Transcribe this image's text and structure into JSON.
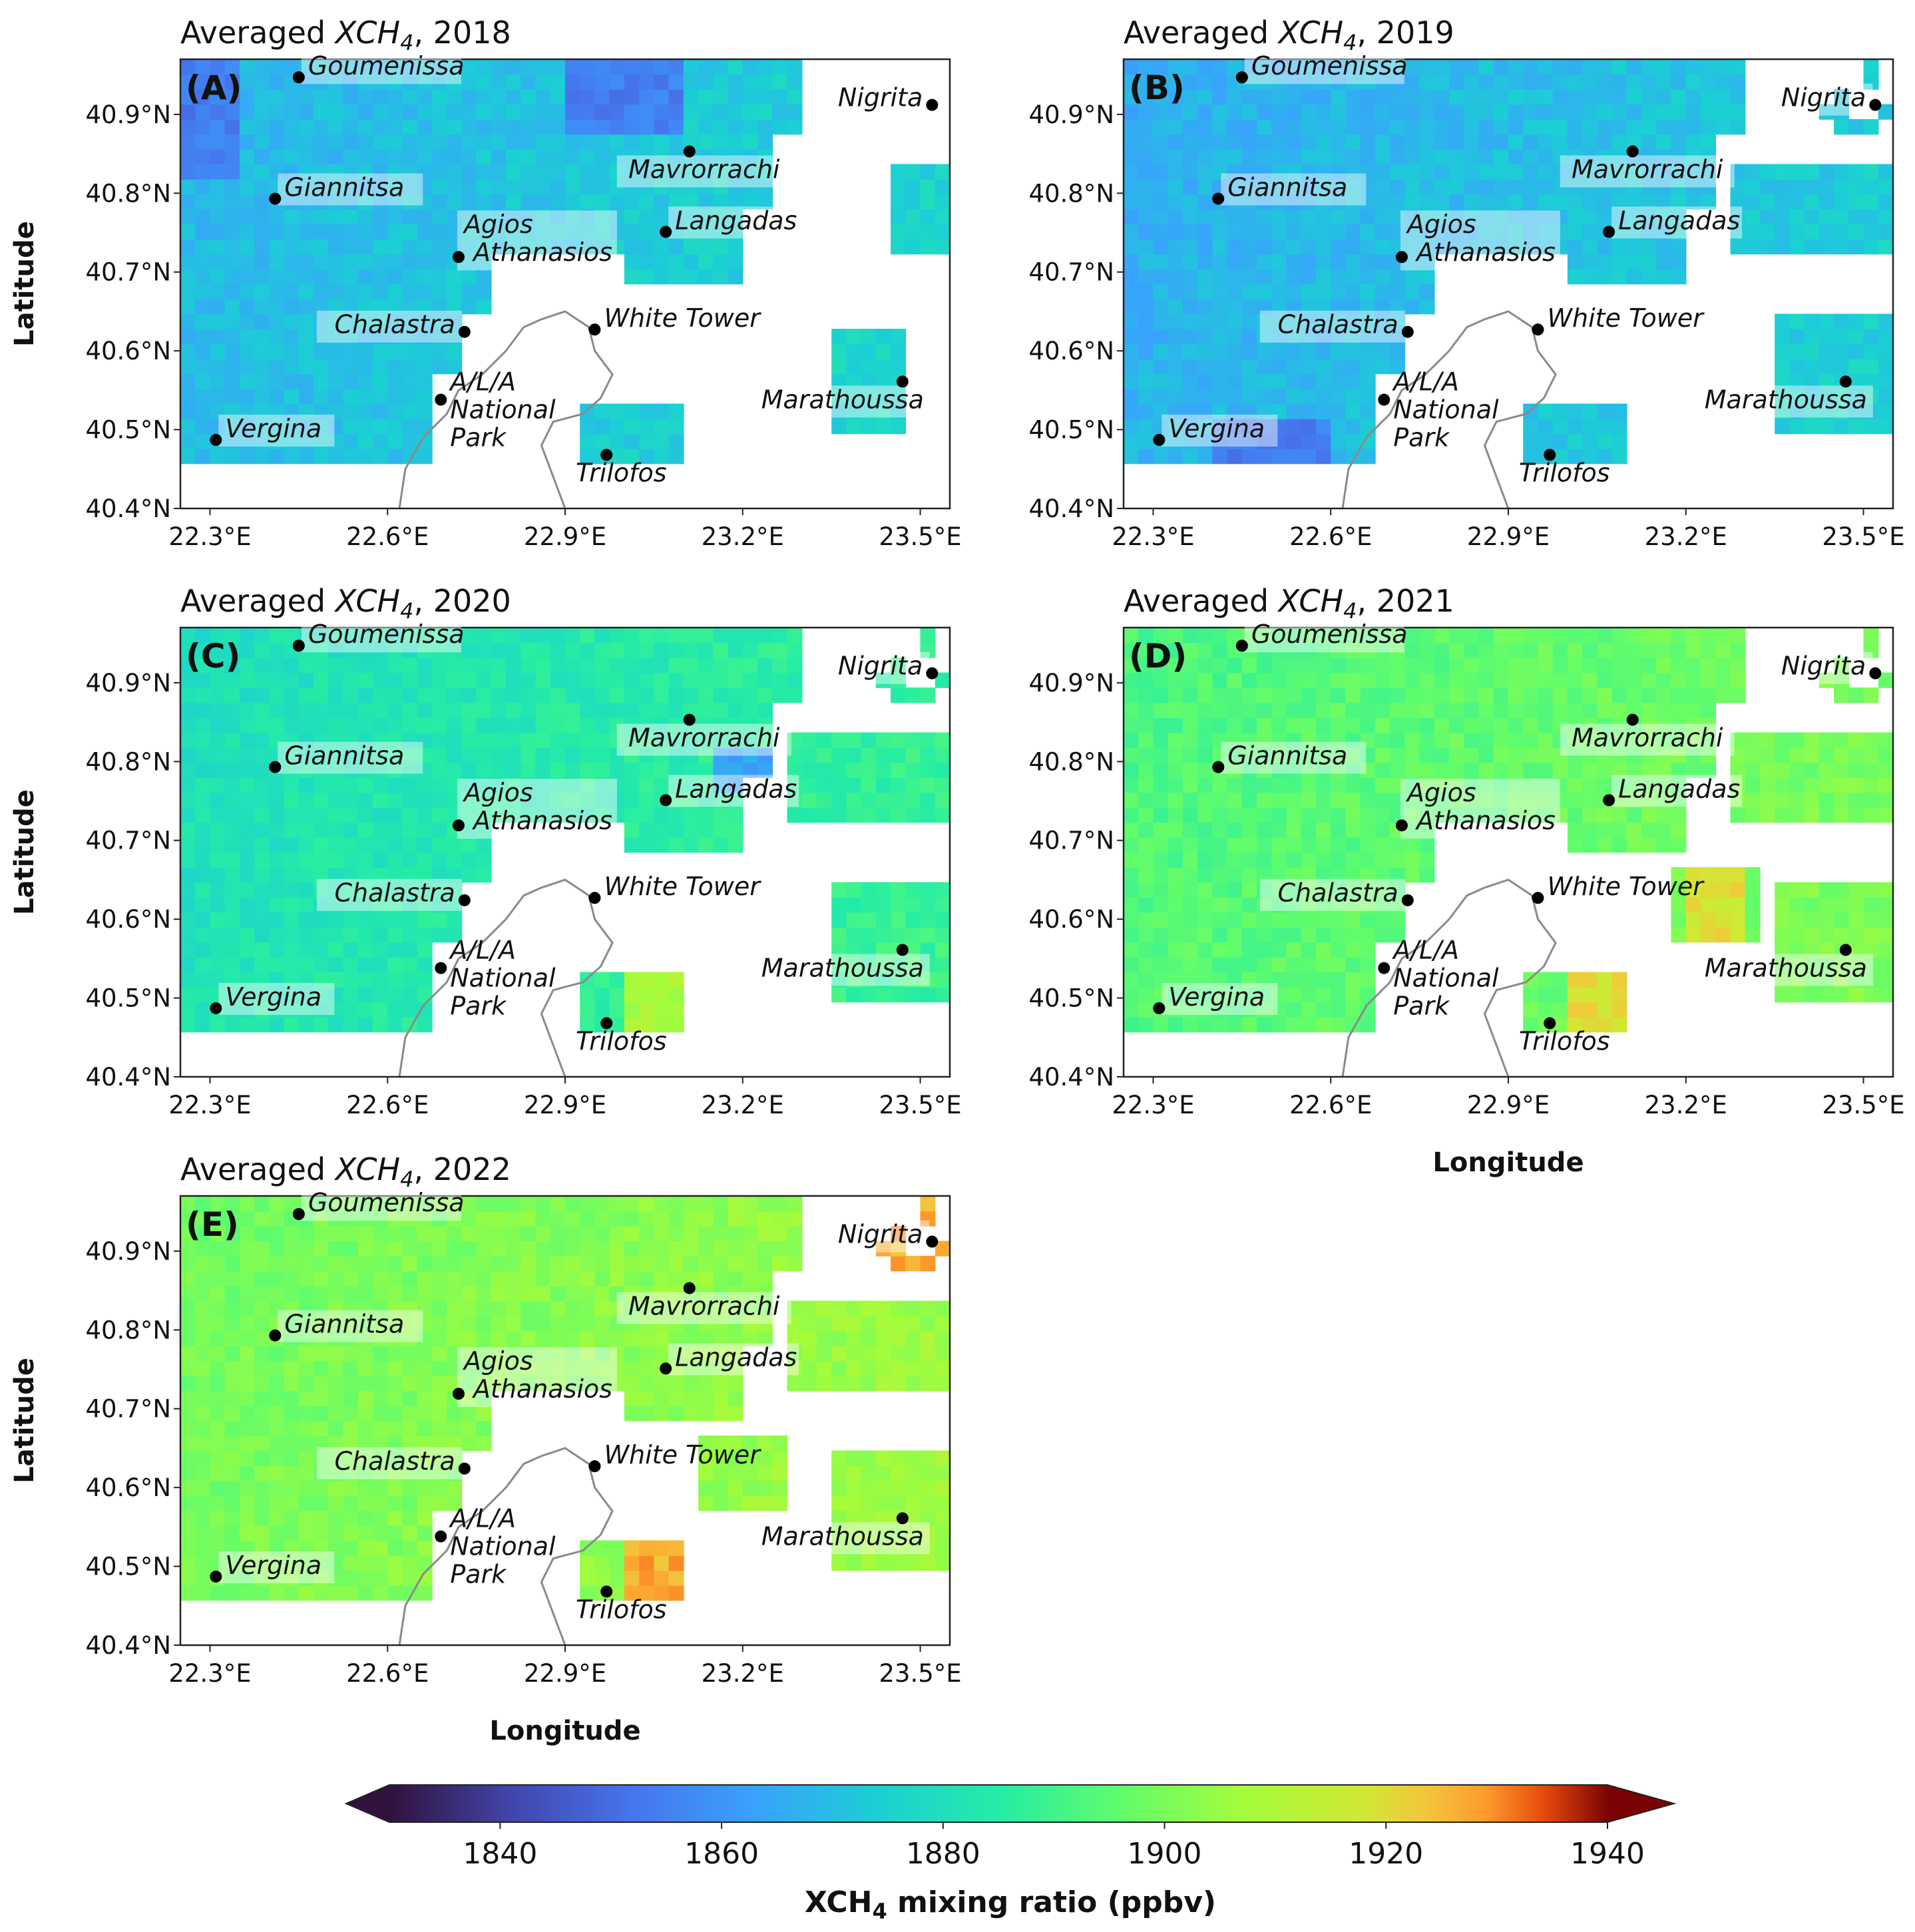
{
  "chart_data": {
    "type": "heatmap",
    "variable": "XCH4",
    "colorbar": {
      "label_prefix": "XCH",
      "label_sub": "4",
      "label_suffix": " mixing ratio (ppbv)",
      "range": [
        1830,
        1940
      ],
      "ticks": [
        "1840",
        "1860",
        "1880",
        "1900",
        "1920",
        "1940"
      ],
      "extend": "both",
      "colormap": "turbo"
    },
    "axes": {
      "xlabel": "Longitude",
      "ylabel": "Latitude",
      "xlim": [
        22.25,
        23.55
      ],
      "ylim": [
        40.4,
        40.97
      ],
      "xticks": [
        {
          "value": 22.3,
          "label": "22.3°E"
        },
        {
          "value": 22.6,
          "label": "22.6°E"
        },
        {
          "value": 22.9,
          "label": "22.9°E"
        },
        {
          "value": 23.2,
          "label": "23.2°E"
        },
        {
          "value": 23.5,
          "label": "23.5°E"
        }
      ],
      "yticks": [
        {
          "value": 40.4,
          "label": "40.4°N"
        },
        {
          "value": 40.5,
          "label": "40.5°N"
        },
        {
          "value": 40.6,
          "label": "40.6°N"
        },
        {
          "value": 40.7,
          "label": "40.7°N"
        },
        {
          "value": 40.8,
          "label": "40.8°N"
        },
        {
          "value": 40.9,
          "label": "40.9°N"
        }
      ]
    },
    "cities": [
      {
        "name": "Goumenissa",
        "lon": 22.45,
        "lat": 40.947,
        "label": [
          "Goumenissa"
        ],
        "side": "right"
      },
      {
        "name": "Nigrita",
        "lon": 23.52,
        "lat": 40.912,
        "label": [
          "Nigrita"
        ],
        "side": "left"
      },
      {
        "name": "Giannitsa",
        "lon": 22.41,
        "lat": 40.793,
        "label": [
          "Giannitsa"
        ],
        "side": "right"
      },
      {
        "name": "Mavrorrachi",
        "lon": 23.11,
        "lat": 40.853,
        "label": [
          "Mavrorrachi"
        ],
        "side": "below"
      },
      {
        "name": "Langadas",
        "lon": 23.07,
        "lat": 40.751,
        "label": [
          "Langadas"
        ],
        "side": "right"
      },
      {
        "name": "Agios Athanasios",
        "lon": 22.72,
        "lat": 40.719,
        "label": [
          "Agios",
          "Athanasios"
        ],
        "side": "right2"
      },
      {
        "name": "Chalastra",
        "lon": 22.73,
        "lat": 40.624,
        "label": [
          "Chalastra"
        ],
        "side": "left"
      },
      {
        "name": "White Tower",
        "lon": 22.95,
        "lat": 40.627,
        "label": [
          "White Tower"
        ],
        "side": "right"
      },
      {
        "name": "A/L/A National Park",
        "lon": 22.69,
        "lat": 40.538,
        "label": [
          "A/L/A",
          "National",
          "Park"
        ],
        "side": "right3"
      },
      {
        "name": "Marathoussa",
        "lon": 23.47,
        "lat": 40.561,
        "label": [
          "Marathoussa"
        ],
        "side": "belowleft"
      },
      {
        "name": "Vergina",
        "lon": 22.31,
        "lat": 40.487,
        "label": [
          "Vergina"
        ],
        "side": "right"
      },
      {
        "name": "Trilofos",
        "lon": 22.97,
        "lat": 40.468,
        "label": [
          "Trilofos"
        ],
        "side": "below"
      }
    ],
    "panels": [
      {
        "id": "A",
        "tag": "(A)",
        "title_prefix": "Averaged ",
        "title_var": "XCH",
        "title_sub": "4",
        "year": ", 2018",
        "base": 1872,
        "show_xlabel": false,
        "show_ylabel": true
      },
      {
        "id": "B",
        "tag": "(B)",
        "title_prefix": "Averaged ",
        "title_var": "XCH",
        "title_sub": "4",
        "year": ", 2019",
        "base": 1870,
        "show_xlabel": false,
        "show_ylabel": false
      },
      {
        "id": "C",
        "tag": "(C)",
        "title_prefix": "Averaged ",
        "title_var": "XCH",
        "title_sub": "4",
        "year": ", 2020",
        "base": 1884,
        "show_xlabel": false,
        "show_ylabel": true
      },
      {
        "id": "D",
        "tag": "(D)",
        "title_prefix": "Averaged ",
        "title_var": "XCH",
        "title_sub": "4",
        "year": ", 2021",
        "base": 1896,
        "show_xlabel": true,
        "show_ylabel": false
      },
      {
        "id": "E",
        "tag": "(E)",
        "title_prefix": "Averaged ",
        "title_var": "XCH",
        "title_sub": "4",
        "year": ", 2022",
        "base": 1902,
        "show_xlabel": true,
        "show_ylabel": true
      }
    ]
  }
}
